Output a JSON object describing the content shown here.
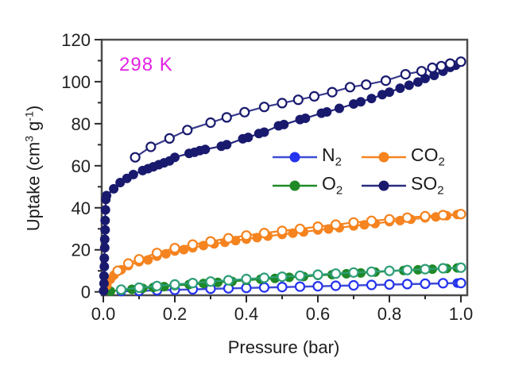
{
  "figure": {
    "annotation": {
      "text": "298 K",
      "color": "#E322E3"
    },
    "x_axis": {
      "label": "Pressure (bar)"
    },
    "y_axis": {
      "label_parts": {
        "prefix": "Uptake (cm",
        "sup1": "3",
        "mid": " g",
        "sup2": "-1",
        "suffix": ")"
      }
    },
    "legend": {
      "items": [
        {
          "id": "n2",
          "main": "N",
          "sub": "2",
          "color": "#2433EE",
          "line_color": "#3D4BD6"
        },
        {
          "id": "co2",
          "main": "CO",
          "sub": "2",
          "color": "#F5831F",
          "line_color": "#F5831F"
        },
        {
          "id": "o2",
          "main": "O",
          "sub": "2",
          "color": "#1E8926",
          "line_color": "#1E8926"
        },
        {
          "id": "so2",
          "main": "SO",
          "sub": "2",
          "color": "#191A6E",
          "line_color": "#2A2B80"
        }
      ]
    },
    "frame_color": "#4d4d4d",
    "tick_color": "#2a2a2a",
    "tick_label_color": "#222222"
  },
  "chart_data": {
    "type": "line",
    "title": "",
    "annotation": "298 K",
    "xlabel": "Pressure (bar)",
    "ylabel": "Uptake (cm3 g-1)",
    "xlim": [
      -0.004,
      1.018
    ],
    "ylim": [
      -1.6,
      120.2
    ],
    "grid": false,
    "legend_position": "inside-center-right",
    "x_ticks": {
      "major": [
        0,
        0.2,
        0.4,
        0.6,
        0.8,
        1.0
      ],
      "labels": [
        "0.0",
        "0.2",
        "0.4",
        "0.6",
        "0.8",
        "1.0"
      ],
      "minor": [
        0.1,
        0.3,
        0.5,
        0.7,
        0.9
      ]
    },
    "y_ticks": {
      "major": [
        0,
        20,
        40,
        60,
        80,
        100,
        120
      ],
      "labels": [
        "0",
        "20",
        "40",
        "60",
        "80",
        "100",
        "120"
      ],
      "minor": [
        10,
        30,
        50,
        70,
        90,
        110
      ]
    },
    "series": [
      {
        "name": "N2",
        "branch": "adsorption",
        "marker": "filled",
        "color": "#2433EE",
        "line_color": "#3D4BD6",
        "points": [
          [
            0.05,
            0.2
          ],
          [
            0.1,
            0.4
          ],
          [
            0.15,
            0.7
          ],
          [
            0.2,
            0.9
          ],
          [
            0.25,
            1.1
          ],
          [
            0.3,
            1.4
          ],
          [
            0.35,
            1.6
          ],
          [
            0.4,
            1.8
          ],
          [
            0.45,
            2.0
          ],
          [
            0.5,
            2.2
          ],
          [
            0.55,
            2.4
          ],
          [
            0.6,
            2.6
          ],
          [
            0.65,
            2.8
          ],
          [
            0.7,
            3.0
          ],
          [
            0.75,
            3.2
          ],
          [
            0.8,
            3.4
          ],
          [
            0.85,
            3.6
          ],
          [
            0.9,
            3.8
          ],
          [
            0.95,
            4.0
          ],
          [
            0.99,
            4.2
          ]
        ]
      },
      {
        "name": "N2",
        "branch": "desorption",
        "marker": "open",
        "color": "#2433EE",
        "line_color": "#3D4BD6",
        "points": [
          [
            0.1,
            0.5
          ],
          [
            0.15,
            0.8
          ],
          [
            0.2,
            1.0
          ],
          [
            0.25,
            1.2
          ],
          [
            0.3,
            1.5
          ],
          [
            0.35,
            1.7
          ],
          [
            0.4,
            1.9
          ],
          [
            0.45,
            2.1
          ],
          [
            0.5,
            2.3
          ],
          [
            0.55,
            2.5
          ],
          [
            0.6,
            2.7
          ],
          [
            0.65,
            2.9
          ],
          [
            0.7,
            3.1
          ],
          [
            0.75,
            3.3
          ],
          [
            0.8,
            3.5
          ],
          [
            0.85,
            3.7
          ],
          [
            0.9,
            3.9
          ],
          [
            0.95,
            4.1
          ],
          [
            1.0,
            4.2
          ]
        ]
      },
      {
        "name": "O2",
        "branch": "adsorption",
        "marker": "filled",
        "color": "#1E8926",
        "line_color": "#1E8926",
        "points": [
          [
            0.02,
            0.3
          ],
          [
            0.05,
            0.8
          ],
          [
            0.08,
            1.2
          ],
          [
            0.11,
            1.7
          ],
          [
            0.14,
            2.1
          ],
          [
            0.17,
            2.5
          ],
          [
            0.2,
            3.0
          ],
          [
            0.24,
            3.5
          ],
          [
            0.28,
            4.0
          ],
          [
            0.32,
            4.5
          ],
          [
            0.36,
            5.0
          ],
          [
            0.4,
            5.5
          ],
          [
            0.44,
            6.0
          ],
          [
            0.48,
            6.4
          ],
          [
            0.52,
            6.9
          ],
          [
            0.56,
            7.3
          ],
          [
            0.6,
            7.8
          ],
          [
            0.64,
            8.2
          ],
          [
            0.68,
            8.6
          ],
          [
            0.72,
            9.0
          ],
          [
            0.76,
            9.4
          ],
          [
            0.8,
            9.8
          ],
          [
            0.84,
            10.2
          ],
          [
            0.88,
            10.5
          ],
          [
            0.92,
            10.8
          ],
          [
            0.96,
            11.1
          ],
          [
            0.99,
            11.4
          ]
        ]
      },
      {
        "name": "O2",
        "branch": "desorption",
        "marker": "open",
        "color": "#2E9E78",
        "line_color": "#2E9E78",
        "points": [
          [
            0.05,
            1.1
          ],
          [
            0.1,
            2.0
          ],
          [
            0.15,
            2.8
          ],
          [
            0.2,
            3.5
          ],
          [
            0.25,
            4.2
          ],
          [
            0.3,
            4.9
          ],
          [
            0.35,
            5.5
          ],
          [
            0.4,
            6.1
          ],
          [
            0.45,
            6.7
          ],
          [
            0.5,
            7.2
          ],
          [
            0.55,
            7.7
          ],
          [
            0.6,
            8.2
          ],
          [
            0.65,
            8.7
          ],
          [
            0.7,
            9.2
          ],
          [
            0.75,
            9.6
          ],
          [
            0.8,
            10.0
          ],
          [
            0.85,
            10.4
          ],
          [
            0.9,
            10.8
          ],
          [
            0.95,
            11.2
          ],
          [
            1.0,
            11.5
          ]
        ]
      },
      {
        "name": "CO2",
        "branch": "adsorption",
        "marker": "filled",
        "color": "#F5831F",
        "line_color": "#F5831F",
        "points": [
          [
            0.01,
            3.0
          ],
          [
            0.02,
            6.0
          ],
          [
            0.03,
            8.0
          ],
          [
            0.05,
            10.5
          ],
          [
            0.07,
            12.5
          ],
          [
            0.1,
            14.3
          ],
          [
            0.125,
            15.2
          ],
          [
            0.15,
            17.0
          ],
          [
            0.175,
            18.1
          ],
          [
            0.2,
            19.4
          ],
          [
            0.225,
            20.1
          ],
          [
            0.25,
            21.0
          ],
          [
            0.28,
            22.0
          ],
          [
            0.31,
            22.8
          ],
          [
            0.34,
            23.6
          ],
          [
            0.37,
            24.4
          ],
          [
            0.4,
            25.1
          ],
          [
            0.43,
            25.8
          ],
          [
            0.46,
            26.5
          ],
          [
            0.5,
            27.3
          ],
          [
            0.53,
            27.9
          ],
          [
            0.56,
            28.5
          ],
          [
            0.6,
            29.4
          ],
          [
            0.63,
            29.9
          ],
          [
            0.66,
            30.5
          ],
          [
            0.7,
            31.4
          ],
          [
            0.73,
            31.9
          ],
          [
            0.76,
            32.5
          ],
          [
            0.8,
            33.4
          ],
          [
            0.83,
            33.9
          ],
          [
            0.86,
            34.5
          ],
          [
            0.9,
            35.2
          ],
          [
            0.93,
            35.7
          ],
          [
            0.96,
            36.2
          ],
          [
            0.99,
            36.8
          ]
        ]
      },
      {
        "name": "CO2",
        "branch": "desorption",
        "marker": "open",
        "color": "#F5831F",
        "line_color": "#F5831F",
        "points": [
          [
            0.04,
            10.0
          ],
          [
            0.07,
            13.5
          ],
          [
            0.1,
            15.5
          ],
          [
            0.15,
            18.5
          ],
          [
            0.2,
            20.8
          ],
          [
            0.25,
            22.5
          ],
          [
            0.3,
            24.0
          ],
          [
            0.35,
            25.5
          ],
          [
            0.4,
            26.8
          ],
          [
            0.45,
            28.0
          ],
          [
            0.5,
            29.0
          ],
          [
            0.55,
            30.0
          ],
          [
            0.6,
            31.0
          ],
          [
            0.65,
            32.0
          ],
          [
            0.7,
            33.0
          ],
          [
            0.75,
            33.8
          ],
          [
            0.8,
            34.5
          ],
          [
            0.85,
            35.3
          ],
          [
            0.9,
            36.0
          ],
          [
            0.95,
            36.5
          ],
          [
            1.0,
            37.0
          ]
        ]
      },
      {
        "name": "SO2",
        "branch": "adsorption",
        "marker": "filled",
        "color": "#191A6E",
        "line_color": "#22237A",
        "points": [
          [
            0.001,
            0.5
          ],
          [
            0.002,
            4.0
          ],
          [
            0.002,
            7.5
          ],
          [
            0.003,
            12.0
          ],
          [
            0.003,
            16.0
          ],
          [
            0.004,
            21.0
          ],
          [
            0.004,
            25.0
          ],
          [
            0.005,
            29.5
          ],
          [
            0.005,
            34.0
          ],
          [
            0.006,
            39.0
          ],
          [
            0.007,
            44.0
          ],
          [
            0.009,
            45.8
          ],
          [
            0.029,
            49.0
          ],
          [
            0.047,
            52.0
          ],
          [
            0.066,
            54.0
          ],
          [
            0.084,
            55.8
          ],
          [
            0.11,
            57.7
          ],
          [
            0.125,
            58.6
          ],
          [
            0.14,
            59.5
          ],
          [
            0.155,
            60.5
          ],
          [
            0.17,
            61.4
          ],
          [
            0.185,
            62.3
          ],
          [
            0.2,
            64.0
          ],
          [
            0.24,
            65.9
          ],
          [
            0.255,
            66.4
          ],
          [
            0.27,
            67.2
          ],
          [
            0.285,
            67.8
          ],
          [
            0.33,
            69.3
          ],
          [
            0.345,
            70.0
          ],
          [
            0.39,
            72.8
          ],
          [
            0.405,
            73.5
          ],
          [
            0.435,
            75.3
          ],
          [
            0.45,
            76.0
          ],
          [
            0.49,
            79.0
          ],
          [
            0.505,
            79.6
          ],
          [
            0.55,
            82.0
          ],
          [
            0.565,
            82.6
          ],
          [
            0.61,
            85.0
          ],
          [
            0.625,
            85.6
          ],
          [
            0.66,
            87.3
          ],
          [
            0.7,
            89.4
          ],
          [
            0.72,
            90.4
          ],
          [
            0.75,
            92.0
          ],
          [
            0.78,
            93.8
          ],
          [
            0.8,
            95.0
          ],
          [
            0.83,
            96.9
          ],
          [
            0.855,
            98.3
          ],
          [
            0.88,
            99.8
          ],
          [
            0.9,
            101.5
          ],
          [
            0.925,
            103.0
          ],
          [
            0.95,
            105.0
          ],
          [
            0.97,
            106.8
          ],
          [
            0.985,
            107.8
          ]
        ]
      },
      {
        "name": "SO2",
        "branch": "desorption",
        "marker": "open",
        "color": "#191A6E",
        "line_color": "#3A3B8C",
        "points": [
          [
            0.089,
            64.0
          ],
          [
            0.133,
            69.0
          ],
          [
            0.185,
            73.0
          ],
          [
            0.235,
            77.0
          ],
          [
            0.3,
            80.5
          ],
          [
            0.345,
            83.0
          ],
          [
            0.395,
            85.5
          ],
          [
            0.45,
            88.0
          ],
          [
            0.5,
            89.8
          ],
          [
            0.545,
            91.4
          ],
          [
            0.59,
            93.0
          ],
          [
            0.64,
            95.0
          ],
          [
            0.69,
            97.4
          ],
          [
            0.735,
            98.6
          ],
          [
            0.79,
            100.5
          ],
          [
            0.845,
            103.5
          ],
          [
            0.89,
            105.0
          ],
          [
            0.92,
            106.6
          ],
          [
            0.945,
            107.4
          ],
          [
            0.97,
            108.6
          ],
          [
            1.0,
            109.5
          ]
        ]
      }
    ]
  }
}
